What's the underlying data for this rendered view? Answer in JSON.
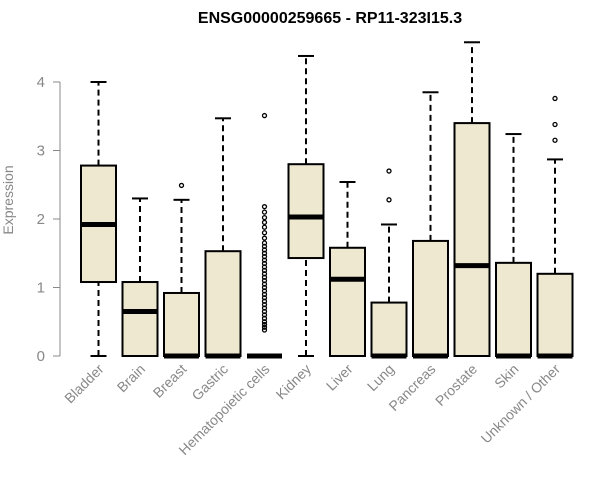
{
  "chart_data": {
    "type": "boxplot",
    "title": "ENSG00000259665 - RP11-323I15.3",
    "xlabel": "",
    "ylabel": "Expression",
    "ylim": [
      0,
      4.6
    ],
    "yticks": [
      0,
      1,
      2,
      3,
      4
    ],
    "grid": false,
    "legend": "none",
    "colors": {
      "box_fill": "#EEE8D0",
      "box_stroke": "#000000",
      "axis": "#888888",
      "title": "#000000"
    },
    "categories": [
      "Bladder",
      "Brain",
      "Breast",
      "Gastric",
      "Hematopoietic cells",
      "Kidney",
      "Liver",
      "Lung",
      "Pancreas",
      "Prostate",
      "Skin",
      "Unknown / Other"
    ],
    "boxes": [
      {
        "whisker_low": 0,
        "q1": 1.08,
        "median": 1.92,
        "q3": 2.78,
        "whisker_high": 4.0,
        "outliers": []
      },
      {
        "whisker_low": 0,
        "q1": 0,
        "median": 0.65,
        "q3": 1.08,
        "whisker_high": 2.3,
        "outliers": []
      },
      {
        "whisker_low": 0,
        "q1": 0,
        "median": 0,
        "q3": 0.92,
        "whisker_high": 2.28,
        "outliers": [
          2.49
        ]
      },
      {
        "whisker_low": 0,
        "q1": 0,
        "median": 0,
        "q3": 1.53,
        "whisker_high": 3.47,
        "outliers": []
      },
      {
        "whisker_low": 0,
        "q1": 0,
        "median": 0,
        "q3": 0,
        "whisker_high": 0,
        "outliers": [
          0.38,
          0.42,
          0.46,
          0.5,
          0.55,
          0.6,
          0.65,
          0.7,
          0.75,
          0.8,
          0.85,
          0.9,
          0.95,
          1.0,
          1.05,
          1.1,
          1.15,
          1.2,
          1.25,
          1.3,
          1.35,
          1.4,
          1.45,
          1.5,
          1.55,
          1.6,
          1.65,
          1.72,
          1.8,
          1.88,
          1.95,
          2.02,
          2.1,
          2.18,
          3.51
        ]
      },
      {
        "whisker_low": 0,
        "q1": 1.43,
        "median": 2.03,
        "q3": 2.8,
        "whisker_high": 4.38,
        "outliers": []
      },
      {
        "whisker_low": 0,
        "q1": 0,
        "median": 1.12,
        "q3": 1.58,
        "whisker_high": 2.54,
        "outliers": []
      },
      {
        "whisker_low": 0,
        "q1": 0,
        "median": 0,
        "q3": 0.78,
        "whisker_high": 1.92,
        "outliers": [
          2.28,
          2.7
        ]
      },
      {
        "whisker_low": 0,
        "q1": 0,
        "median": 0,
        "q3": 1.68,
        "whisker_high": 3.85,
        "outliers": []
      },
      {
        "whisker_low": 0,
        "q1": 0,
        "median": 1.32,
        "q3": 3.4,
        "whisker_high": 4.58,
        "outliers": []
      },
      {
        "whisker_low": 0,
        "q1": 0,
        "median": 0,
        "q3": 1.36,
        "whisker_high": 3.24,
        "outliers": []
      },
      {
        "whisker_low": 0,
        "q1": 0,
        "median": 0,
        "q3": 1.2,
        "whisker_high": 2.87,
        "outliers": [
          3.15,
          3.38,
          3.76
        ]
      }
    ]
  }
}
